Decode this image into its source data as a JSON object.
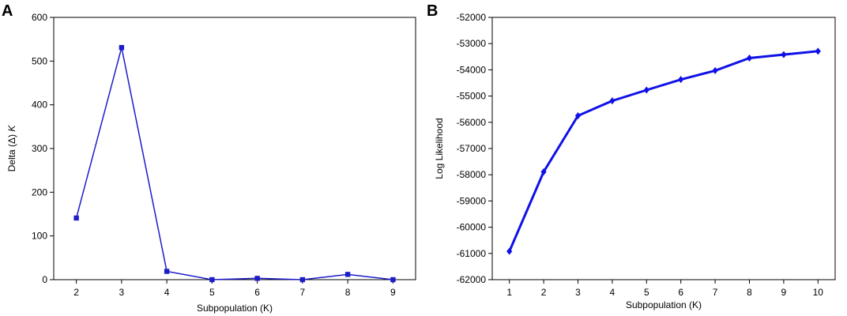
{
  "chart_data": [
    {
      "panel_label": "A",
      "type": "line",
      "xlabel": "Subpopulation  (K)",
      "ylabel": "Delta (Δ) ",
      "ylabel_italic": "K",
      "x": [
        2,
        3,
        4,
        5,
        6,
        7,
        8,
        9
      ],
      "series": [
        {
          "values": [
            141,
            531,
            19,
            0,
            3,
            0,
            12,
            0
          ],
          "color": "#1c1cc8",
          "marker": "square"
        }
      ],
      "xlim": [
        1.5,
        9.5
      ],
      "ylim": [
        0,
        600
      ],
      "yticks": [
        0,
        100,
        200,
        300,
        400,
        500,
        600
      ],
      "xticks": [
        2,
        3,
        4,
        5,
        6,
        7,
        8,
        9
      ],
      "grid": false,
      "legend": false
    },
    {
      "panel_label": "B",
      "type": "line",
      "xlabel": "Subpopulation (K)",
      "ylabel": "Log Likelihood",
      "x": [
        1,
        2,
        3,
        4,
        5,
        6,
        7,
        8,
        9,
        10
      ],
      "series": [
        {
          "values": [
            -60920,
            -57890,
            -55750,
            -55180,
            -54770,
            -54370,
            -54030,
            -53550,
            -53420,
            -53290
          ],
          "color": "#1010e8",
          "marker": "diamond"
        }
      ],
      "xlim": [
        0.5,
        10.5
      ],
      "ylim": [
        -62000,
        -52000
      ],
      "yticks": [
        -62000,
        -61000,
        -60000,
        -59000,
        -58000,
        -57000,
        -56000,
        -55000,
        -54000,
        -53000,
        -52000
      ],
      "xticks": [
        1,
        2,
        3,
        4,
        5,
        6,
        7,
        8,
        9,
        10
      ],
      "grid": false,
      "legend": false
    }
  ]
}
